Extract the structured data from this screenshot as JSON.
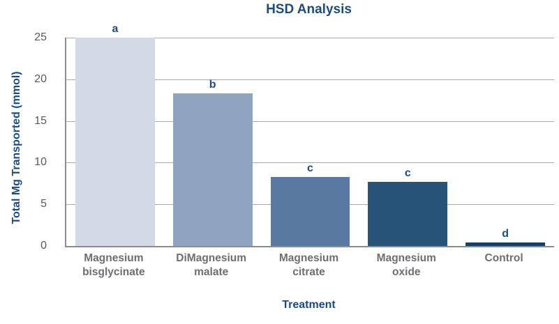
{
  "chart_data": {
    "type": "bar",
    "title": "HSD Analysis",
    "xlabel": "Treatment",
    "ylabel": "Total Mg Transported (mmol)",
    "ylim": [
      0,
      25
    ],
    "yticks": [
      0,
      5,
      10,
      15,
      20,
      25
    ],
    "grid": "horizontal",
    "legend": "none",
    "categories": [
      "Magnesium bisglycinate",
      "DiMagnesium malate",
      "Magnesium citrate",
      "Magnesium oxide",
      "Control"
    ],
    "values": [
      25.0,
      18.3,
      8.3,
      7.7,
      0.4
    ],
    "bars": [
      {
        "label_lines": [
          "Magnesium",
          "bisglycinate"
        ],
        "value": 25.0,
        "letter": "a",
        "color": "#d3d9e5"
      },
      {
        "label_lines": [
          "DiMagnesium",
          "malate"
        ],
        "value": 18.3,
        "letter": "b",
        "color": "#90a3bf"
      },
      {
        "label_lines": [
          "Magnesium",
          "citrate"
        ],
        "value": 8.3,
        "letter": "c",
        "color": "#5979a1"
      },
      {
        "label_lines": [
          "Magnesium",
          "oxide"
        ],
        "value": 7.7,
        "letter": "c",
        "color": "#275379"
      },
      {
        "label_lines": [
          "Control"
        ],
        "value": 0.4,
        "letter": "d",
        "color": "#1a3e62"
      }
    ]
  },
  "colors": {
    "heading": "#1c4b7e",
    "tick_label": "#58595b",
    "category_label": "#6d6e71",
    "gridline": "#a7a9ac",
    "axis": "#8a8c8e",
    "background": "#ffffff"
  }
}
